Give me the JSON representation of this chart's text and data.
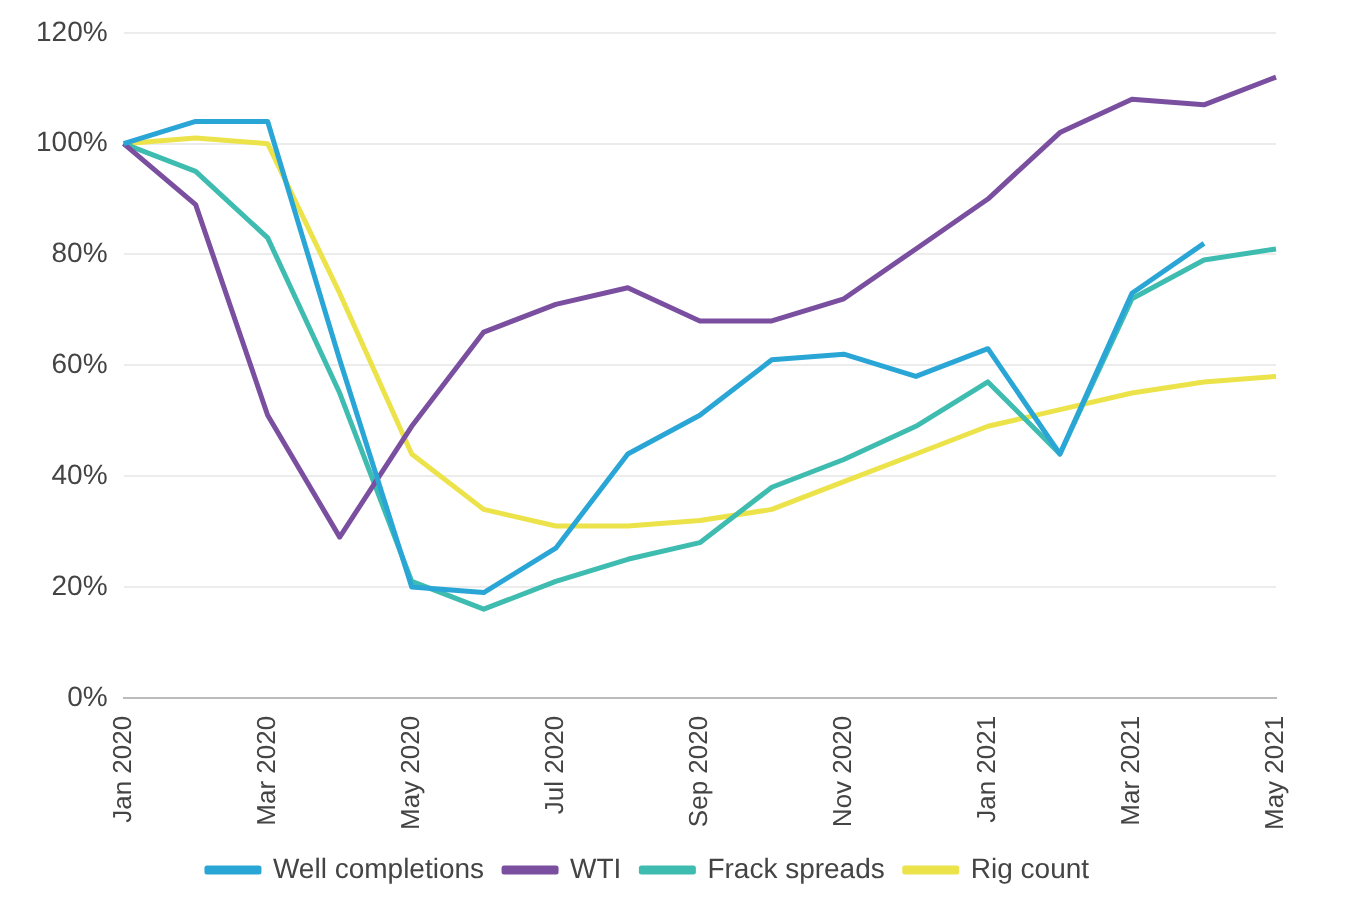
{
  "chart_data": {
    "type": "line",
    "categories": [
      "Jan 2020",
      null,
      "Mar 2020",
      null,
      "May 2020",
      null,
      "Jul 2020",
      null,
      "Sep 2020",
      null,
      "Nov 2020",
      null,
      "Jan 2021",
      null,
      "Mar 2021",
      null,
      "May 2021"
    ],
    "series": [
      {
        "name": "Well completions",
        "color": "#2aa6d6",
        "values": [
          100,
          104,
          104,
          61,
          20,
          19,
          27,
          44,
          51,
          61,
          62,
          58,
          63,
          44,
          73,
          82,
          null
        ]
      },
      {
        "name": "WTI",
        "color": "#7a4fa0",
        "values": [
          100,
          89,
          51,
          29,
          49,
          66,
          71,
          74,
          68,
          68,
          72,
          81,
          90,
          102,
          108,
          107,
          112
        ]
      },
      {
        "name": "Frack spreads",
        "color": "#3fbcb0",
        "values": [
          100,
          95,
          83,
          55,
          21,
          16,
          21,
          25,
          28,
          38,
          43,
          49,
          57,
          44,
          72,
          79,
          81
        ]
      },
      {
        "name": "Rig count",
        "color": "#ece34a",
        "values": [
          100,
          101,
          100,
          73,
          44,
          34,
          31,
          31,
          32,
          34,
          39,
          44,
          49,
          52,
          55,
          57,
          58
        ]
      }
    ],
    "ylim": [
      0,
      120
    ],
    "yticks": [
      {
        "value": 0,
        "label": "0%"
      },
      {
        "value": 20,
        "label": "20%"
      },
      {
        "value": 40,
        "label": "40%"
      },
      {
        "value": 60,
        "label": "60%"
      },
      {
        "value": 80,
        "label": "80%"
      },
      {
        "value": 100,
        "label": "100%"
      },
      {
        "value": 120,
        "label": "120%"
      }
    ],
    "grid": "y",
    "legend": "bottom",
    "marker": "none",
    "line_style": "solid"
  }
}
